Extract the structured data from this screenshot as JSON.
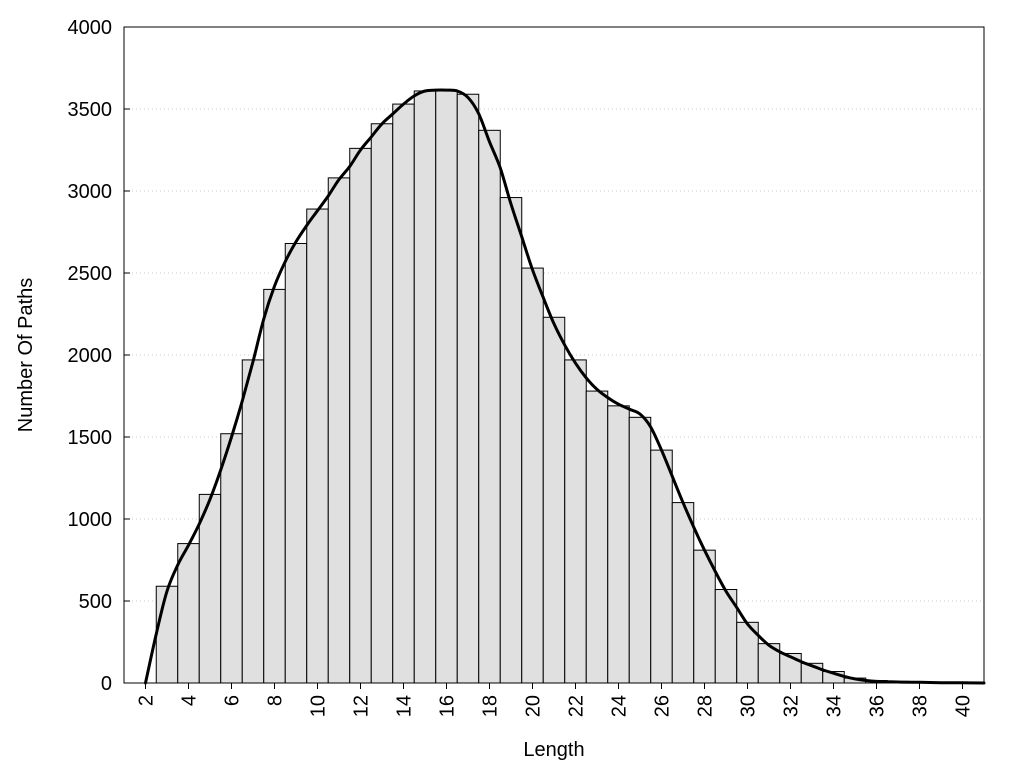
{
  "chart_data": {
    "type": "bar",
    "title": "",
    "xlabel": "Length",
    "ylabel": "Number Of Paths",
    "ylim": [
      0,
      4000
    ],
    "xlim": [
      1,
      41
    ],
    "grid": "horizontal-dotted",
    "legend": "none",
    "bar_color": "#e0e0e0",
    "bar_edge_color": "#000000",
    "curve_color": "#000000",
    "x_ticks": [
      "2",
      "4",
      "6",
      "8",
      "10",
      "12",
      "14",
      "16",
      "18",
      "20",
      "22",
      "24",
      "26",
      "28",
      "30",
      "32",
      "34",
      "36",
      "38",
      "40"
    ],
    "y_ticks": [
      "0",
      "500",
      "1000",
      "1500",
      "2000",
      "2500",
      "3000",
      "3500",
      "4000"
    ],
    "categories": [
      "3",
      "4",
      "5",
      "6",
      "7",
      "8",
      "9",
      "10",
      "11",
      "12",
      "13",
      "14",
      "15",
      "16",
      "17",
      "18",
      "19",
      "20",
      "21",
      "22",
      "23",
      "24",
      "25",
      "26",
      "27",
      "28",
      "29",
      "30",
      "31",
      "32",
      "33",
      "34",
      "35",
      "36",
      "37",
      "38",
      "39",
      "40"
    ],
    "values": [
      590,
      850,
      1150,
      1520,
      1970,
      2400,
      2680,
      2890,
      3080,
      3260,
      3410,
      3530,
      3610,
      3610,
      3590,
      3370,
      2960,
      2530,
      2230,
      1970,
      1780,
      1690,
      1620,
      1420,
      1100,
      810,
      570,
      370,
      240,
      180,
      120,
      70,
      30,
      15,
      10,
      8,
      6,
      5
    ],
    "curve": {
      "x": [
        2,
        2.5,
        3,
        3.5,
        4,
        4.5,
        5,
        5.5,
        6,
        6.5,
        7,
        7.5,
        8,
        8.5,
        9,
        9.5,
        10,
        10.5,
        11,
        11.5,
        12,
        12.5,
        13,
        13.5,
        14,
        14.5,
        15,
        15.5,
        16,
        16.5,
        17,
        17.5,
        18,
        18.5,
        19,
        19.5,
        20,
        20.5,
        21,
        21.5,
        22,
        22.5,
        23,
        23.5,
        24,
        24.5,
        25,
        25.5,
        26,
        26.5,
        27,
        27.5,
        28,
        28.5,
        29,
        29.5,
        30,
        30.5,
        31,
        31.5,
        32,
        32.5,
        33,
        33.5,
        34,
        34.5,
        35,
        35.5,
        36,
        37,
        38,
        39,
        40,
        41
      ],
      "y": [
        0,
        300,
        560,
        720,
        840,
        970,
        1120,
        1300,
        1500,
        1720,
        1960,
        2220,
        2420,
        2570,
        2690,
        2790,
        2880,
        2970,
        3070,
        3150,
        3250,
        3330,
        3410,
        3470,
        3530,
        3580,
        3610,
        3615,
        3615,
        3610,
        3570,
        3470,
        3300,
        3140,
        2920,
        2720,
        2520,
        2350,
        2190,
        2060,
        1950,
        1860,
        1790,
        1740,
        1700,
        1670,
        1640,
        1560,
        1420,
        1260,
        1100,
        950,
        810,
        680,
        560,
        460,
        360,
        290,
        230,
        190,
        160,
        130,
        105,
        80,
        60,
        40,
        25,
        15,
        10,
        6,
        4,
        2,
        1,
        0
      ]
    }
  }
}
